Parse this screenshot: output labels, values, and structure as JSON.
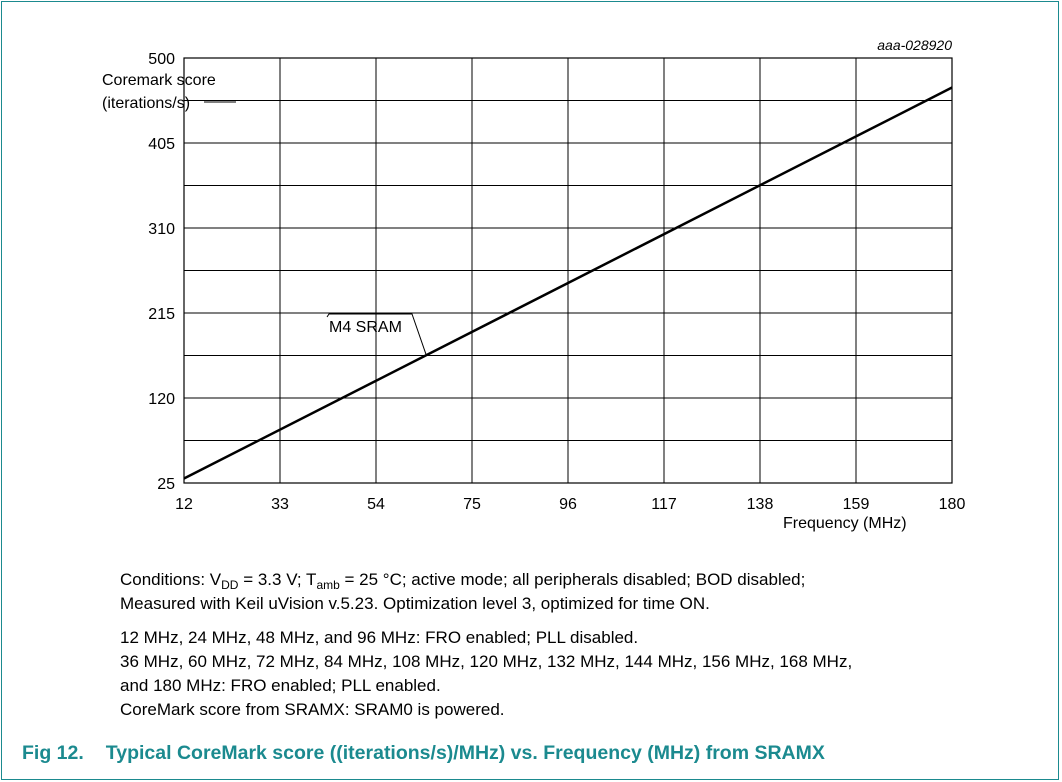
{
  "chart_data": {
    "type": "line",
    "id_label": "aaa-028920",
    "ylabel_line1": "Coremark score",
    "ylabel_line2": "(iterations/s)",
    "xlabel": "Frequency (MHz)",
    "xlim": [
      12,
      180
    ],
    "ylim": [
      25,
      500
    ],
    "x_ticks": [
      12,
      33,
      54,
      75,
      96,
      117,
      138,
      159,
      180
    ],
    "y_ticks": [
      25,
      120,
      215,
      310,
      405,
      500
    ],
    "grid": true,
    "series": [
      {
        "name": "M4 SRAM",
        "x": [
          12,
          180
        ],
        "y": [
          30,
          467
        ]
      }
    ],
    "annotation": {
      "text": "M4 SRAM",
      "series": 0,
      "x": 65
    }
  },
  "conditions": {
    "prefix": "Conditions: V",
    "vdd_sub": "DD",
    "mid1": " = 3.3 V; T",
    "tamb_sub": "amb",
    "mid2": " = 25 °C; active mode; all peripherals disabled; BOD disabled;",
    "line2": "Measured with Keil uVision v.5.23. Optimization level 3, optimized for time ON."
  },
  "notes": [
    "12 MHz, 24 MHz, 48 MHz, and 96 MHz: FRO enabled; PLL disabled.",
    "36 MHz, 60 MHz, 72 MHz, 84 MHz, 108 MHz, 120 MHz, 132 MHz, 144 MHz, 156 MHz, 168 MHz,",
    "and 180 MHz: FRO enabled; PLL enabled.",
    "CoreMark score from SRAMX: SRAM0 is powered."
  ],
  "figure": {
    "number": "Fig 12.",
    "caption": "Typical CoreMark score ((iterations/s)/MHz) vs. Frequency (MHz) from SRAMX"
  },
  "colors": {
    "frame": "#1b8a8f",
    "caption": "#1b8a8f",
    "line": "#000000",
    "grid": "#000000"
  }
}
